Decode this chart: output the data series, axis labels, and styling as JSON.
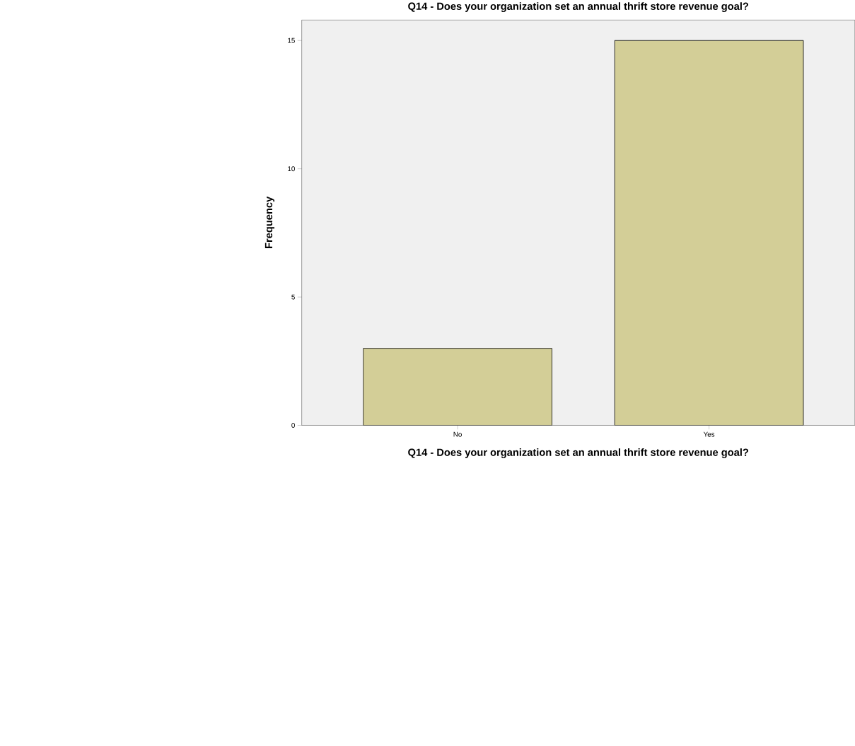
{
  "chart_data": {
    "type": "bar",
    "title": "Q14 - Does your organization set an annual thrift store revenue goal?",
    "xlabel": "Q14 - Does your organization set an annual thrift store revenue goal?",
    "ylabel": "Frequency",
    "categories": [
      "No",
      "Yes"
    ],
    "values": [
      3,
      15
    ],
    "color": "#d3ce97",
    "ylim": [
      0,
      15.8
    ],
    "yticks": [
      0,
      5,
      10,
      15
    ],
    "grid": false
  }
}
